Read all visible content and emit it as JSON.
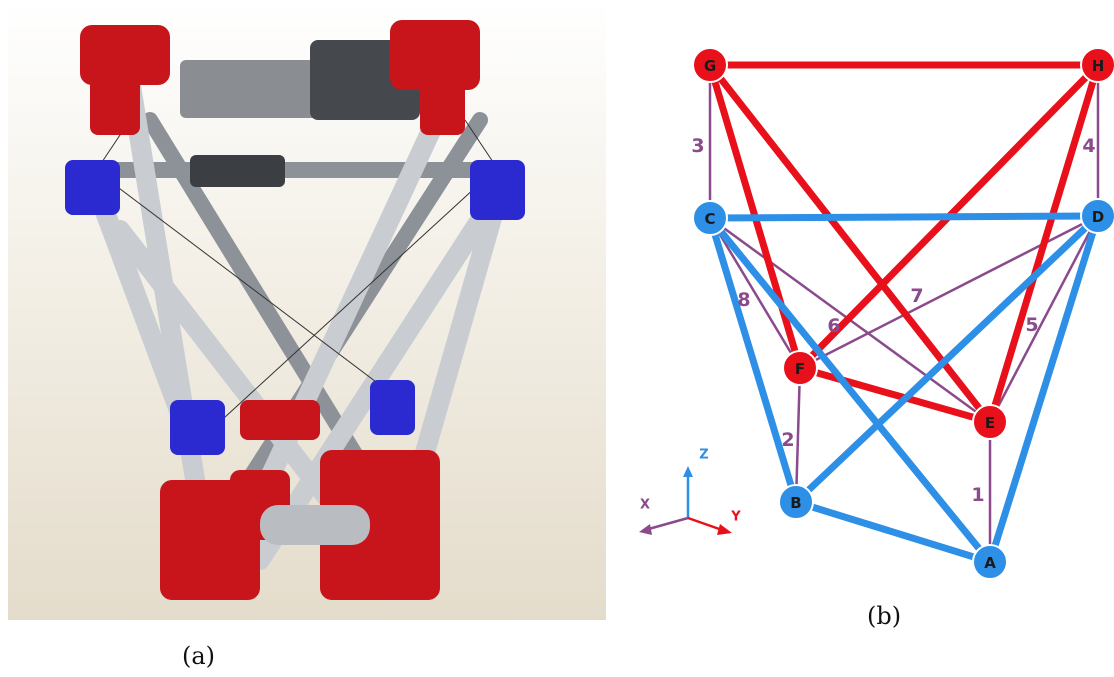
{
  "captions": {
    "a": "(a)",
    "b": "(b)"
  },
  "colors": {
    "red": "#e8101a",
    "blue": "#2d8fe6",
    "purple": "#8a4a8c",
    "node_stroke": "#ffffff"
  },
  "nodes": [
    {
      "id": "G",
      "color": "red"
    },
    {
      "id": "H",
      "color": "red"
    },
    {
      "id": "C",
      "color": "blue"
    },
    {
      "id": "D",
      "color": "blue"
    },
    {
      "id": "F",
      "color": "red"
    },
    {
      "id": "E",
      "color": "red"
    },
    {
      "id": "B",
      "color": "blue"
    },
    {
      "id": "A",
      "color": "blue"
    }
  ],
  "struts": [
    {
      "from": "G",
      "to": "H",
      "color": "red"
    },
    {
      "from": "G",
      "to": "F",
      "color": "red"
    },
    {
      "from": "G",
      "to": "E",
      "color": "red"
    },
    {
      "from": "H",
      "to": "F",
      "color": "red"
    },
    {
      "from": "H",
      "to": "E",
      "color": "red"
    },
    {
      "from": "F",
      "to": "E",
      "color": "red"
    },
    {
      "from": "C",
      "to": "D",
      "color": "blue"
    },
    {
      "from": "C",
      "to": "B",
      "color": "blue"
    },
    {
      "from": "C",
      "to": "A",
      "color": "blue"
    },
    {
      "from": "D",
      "to": "B",
      "color": "blue"
    },
    {
      "from": "D",
      "to": "A",
      "color": "blue"
    },
    {
      "from": "B",
      "to": "A",
      "color": "blue"
    }
  ],
  "cables": [
    {
      "from": "B",
      "to": "F",
      "label": "2"
    },
    {
      "from": "A",
      "to": "E",
      "label": "1"
    },
    {
      "from": "C",
      "to": "G",
      "label": "3"
    },
    {
      "from": "D",
      "to": "H",
      "label": "4"
    },
    {
      "from": "C",
      "to": "F",
      "label": "8"
    },
    {
      "from": "C",
      "to": "E",
      "label": "6"
    },
    {
      "from": "D",
      "to": "F",
      "label": "7"
    },
    {
      "from": "D",
      "to": "E",
      "label": "5"
    }
  ],
  "axes": {
    "x": "X",
    "y": "Y",
    "z": "Z"
  }
}
